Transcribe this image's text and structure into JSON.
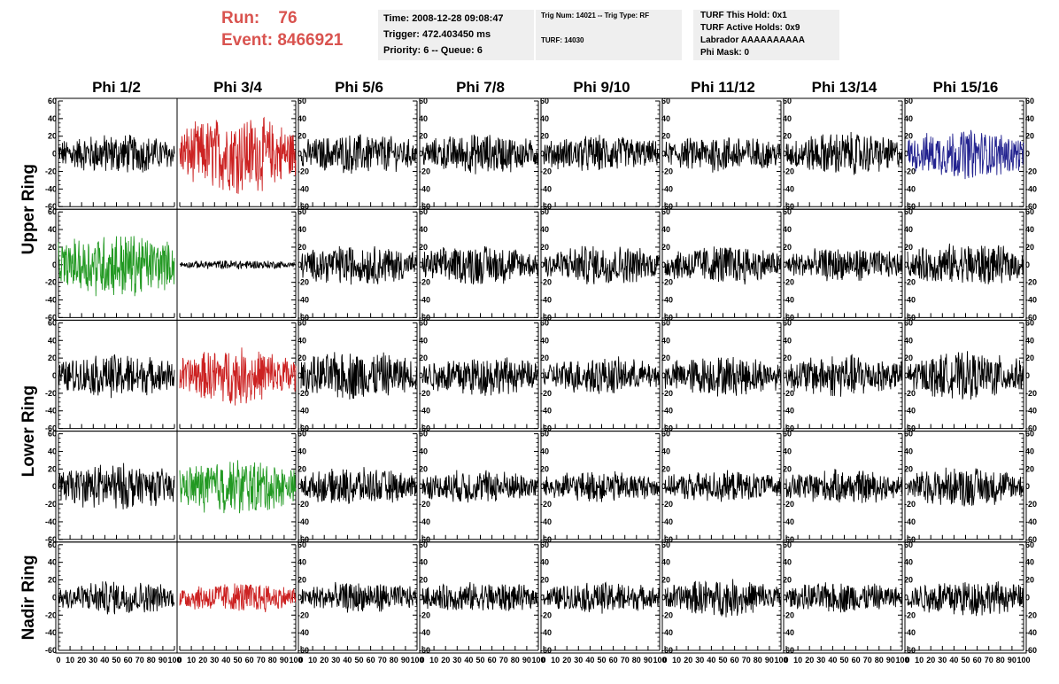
{
  "header": {
    "run_label": "Run:",
    "run_value": "76",
    "event_label": "Event:",
    "event_value": "8466921",
    "time": "Time: 2008-12-28 09:08:47",
    "trigger": "Trigger: 472.403450 ms",
    "priority": "Priority: 6 -- Queue: 6",
    "trig_num": "Trig Num: 14021 -- Trig Type: RF",
    "turf": "TURF: 14030",
    "turf_hold": "TURF This Hold: 0x1",
    "turf_active": "TURF Active Holds: 0x9",
    "labrador": "Labrador AAAAAAAAAA",
    "phi_mask": "Phi Mask: 0"
  },
  "chart_data": {
    "type": "line",
    "columns": [
      "Phi 1/2",
      "Phi 3/4",
      "Phi 5/6",
      "Phi 7/8",
      "Phi 9/10",
      "Phi 11/12",
      "Phi 13/14",
      "Phi 15/16"
    ],
    "rows": [
      "Upper Ring",
      "Upper Ring",
      "Lower Ring",
      "Lower Ring",
      "Nadir Ring"
    ],
    "row_groups": [
      {
        "label": "Upper Ring",
        "rows": [
          0,
          1
        ]
      },
      {
        "label": "Lower Ring",
        "rows": [
          2,
          3
        ]
      },
      {
        "label": "Nadir Ring",
        "rows": [
          4
        ]
      }
    ],
    "xlim": [
      0,
      100
    ],
    "ylim": [
      -60,
      60
    ],
    "x_ticks": [
      "0",
      "10",
      "20",
      "30",
      "40",
      "50",
      "60",
      "70",
      "80",
      "90",
      "100"
    ],
    "y_ticks": [
      "60",
      "40",
      "20",
      "0",
      "-20",
      "-40",
      "-60"
    ],
    "grid": false,
    "colors": {
      "default": "#000000",
      "red": "#cc2222",
      "green": "#229922",
      "blue": "#22228f"
    },
    "panel_amplitude": [
      [
        13,
        25,
        13,
        13,
        12,
        12,
        14,
        16
      ],
      [
        21,
        3,
        13,
        13,
        13,
        13,
        11,
        14
      ],
      [
        14,
        18,
        16,
        13,
        12,
        13,
        14,
        15
      ],
      [
        15,
        18,
        12,
        11,
        10,
        10,
        11,
        13
      ],
      [
        11,
        10,
        10,
        10,
        10,
        12,
        10,
        12
      ]
    ],
    "panel_color": [
      [
        "default",
        "red",
        "default",
        "default",
        "default",
        "default",
        "default",
        "blue"
      ],
      [
        "green",
        "default",
        "default",
        "default",
        "default",
        "default",
        "default",
        "default"
      ],
      [
        "default",
        "red",
        "default",
        "default",
        "default",
        "default",
        "default",
        "default"
      ],
      [
        "default",
        "green",
        "default",
        "default",
        "default",
        "default",
        "default",
        "default"
      ],
      [
        "default",
        "red",
        "default",
        "default",
        "default",
        "default",
        "default",
        "default"
      ]
    ]
  }
}
